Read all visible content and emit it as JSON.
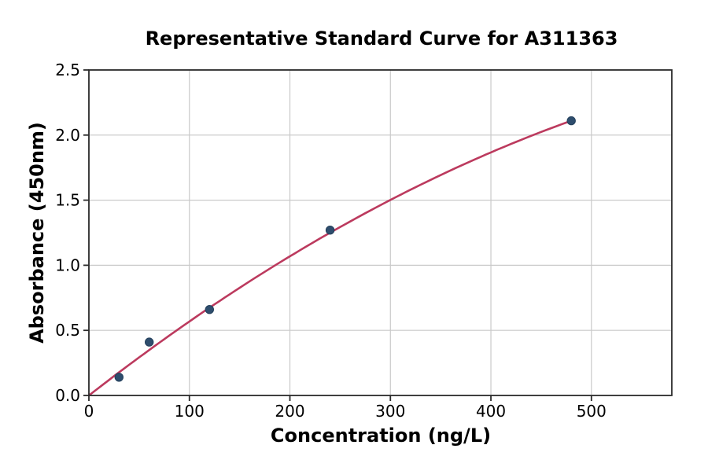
{
  "chart_data": {
    "type": "scatter",
    "title": "Representative Standard Curve for A311363",
    "xlabel": "Concentration (ng/L)",
    "ylabel": "Absorbance (450nm)",
    "x": [
      30,
      60,
      120,
      240,
      480
    ],
    "y": [
      0.14,
      0.41,
      0.66,
      1.27,
      2.11
    ],
    "fit_curve": {
      "type": "quadratic",
      "equation": "y = 0.006021x - 0.000003385x^2",
      "a": 0.006021,
      "b": -3.385e-06,
      "x_start": 0,
      "x_end": 480
    },
    "xlim": [
      0,
      580
    ],
    "ylim": [
      0,
      2.5
    ],
    "xticks": [
      0,
      100,
      200,
      300,
      400,
      500
    ],
    "ytick_labels": [
      "0.0",
      "0.5",
      "1.0",
      "1.5",
      "2.0",
      "2.5"
    ],
    "grid": true,
    "legend_position": "none",
    "colors": {
      "curve": "#bc3a5e",
      "marker": "#2e4d6d",
      "marker_edge": "#24405c",
      "grid": "#c9c9c9",
      "spine": "#2b2b2b",
      "text": "#000000",
      "background": "#ffffff"
    }
  }
}
